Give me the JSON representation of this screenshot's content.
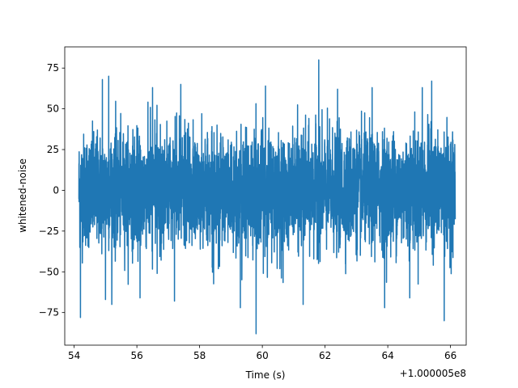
{
  "chart_data": {
    "type": "line",
    "title": "",
    "xlabel": "Time (s)",
    "ylabel": "whitened-noise",
    "x_offset_label": "+1.000005e8",
    "xlim": [
      53.7,
      66.5
    ],
    "ylim": [
      -95,
      88
    ],
    "x_range": [
      54.15,
      66.15
    ],
    "x_ticks": [
      54,
      56,
      58,
      60,
      62,
      64,
      66
    ],
    "x_tick_labels": [
      "54",
      "56",
      "58",
      "60",
      "62",
      "64",
      "66"
    ],
    "y_ticks": [
      -75,
      -50,
      -25,
      0,
      25,
      50,
      75
    ],
    "y_tick_labels": [
      "−75",
      "−50",
      "−25",
      "0",
      "25",
      "50",
      "75"
    ],
    "grid": false,
    "line_color": "#1f77b4",
    "series": [
      {
        "spikes": [
          {
            "x": 54.2,
            "y": -78
          },
          {
            "x": 54.9,
            "y": 68
          },
          {
            "x": 55.1,
            "y": 70
          },
          {
            "x": 55.0,
            "y": -67
          },
          {
            "x": 55.2,
            "y": -70
          },
          {
            "x": 56.1,
            "y": -66
          },
          {
            "x": 56.5,
            "y": 63
          },
          {
            "x": 57.4,
            "y": 65
          },
          {
            "x": 57.2,
            "y": -68
          },
          {
            "x": 59.3,
            "y": -72
          },
          {
            "x": 59.8,
            "y": -88
          },
          {
            "x": 60.1,
            "y": 64
          },
          {
            "x": 61.3,
            "y": -70
          },
          {
            "x": 61.8,
            "y": 80
          },
          {
            "x": 62.4,
            "y": 62
          },
          {
            "x": 63.5,
            "y": 63
          },
          {
            "x": 63.9,
            "y": -72
          },
          {
            "x": 64.7,
            "y": -66
          },
          {
            "x": 65.1,
            "y": 63
          },
          {
            "x": 65.4,
            "y": 67
          },
          {
            "x": 65.8,
            "y": -80
          }
        ]
      }
    ]
  }
}
